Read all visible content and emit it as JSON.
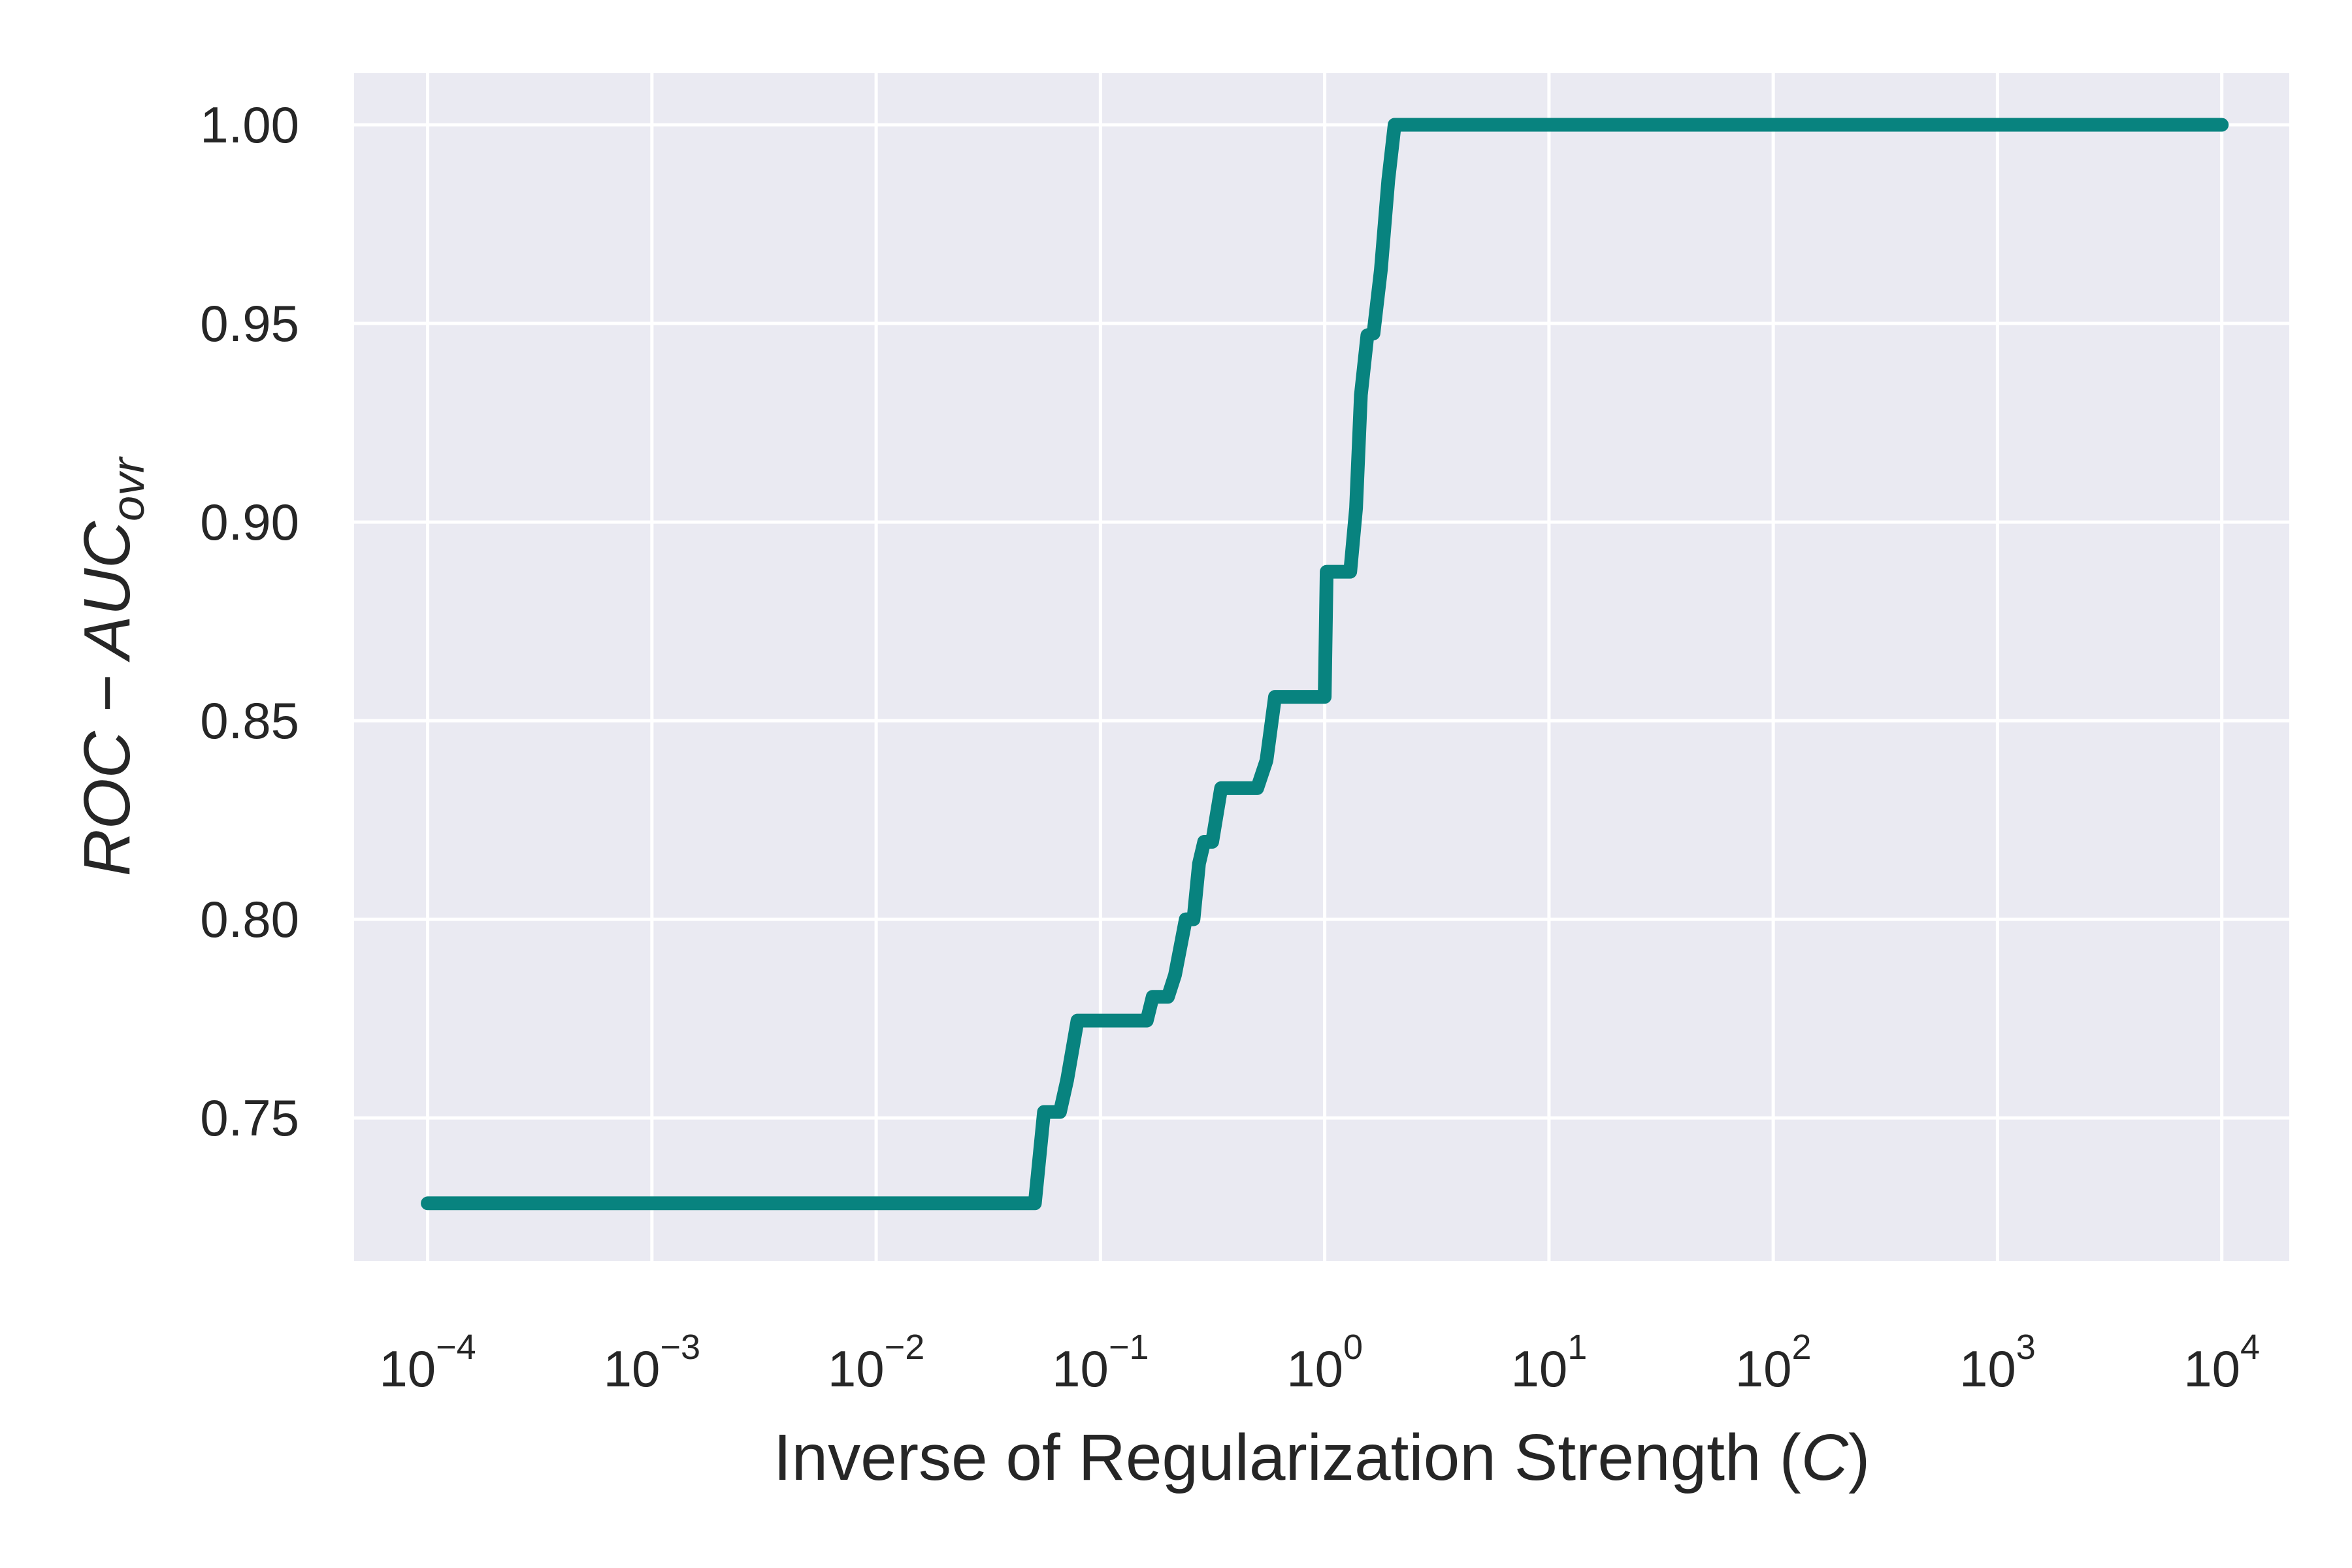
{
  "chart_data": {
    "type": "line",
    "title": "",
    "xlabel": "Inverse of Regularization Strength (C)",
    "xlabel_parts": {
      "prefix": "Inverse of Regularization Strength (",
      "var": "C",
      "suffix": ")"
    },
    "ylabel": "ROC − AUC_ovr",
    "ylabel_parts": {
      "main": "ROC − AUC",
      "sub": "ovr"
    },
    "xscale": "log",
    "xlim": [
      4.7e-05,
      20000
    ],
    "ylim": [
      0.714,
      1.013
    ],
    "x_ticks": [
      {
        "base": "10",
        "exp": "−4",
        "value": 0.0001
      },
      {
        "base": "10",
        "exp": "−3",
        "value": 0.001
      },
      {
        "base": "10",
        "exp": "−2",
        "value": 0.01
      },
      {
        "base": "10",
        "exp": "−1",
        "value": 0.1
      },
      {
        "base": "10",
        "exp": "0",
        "value": 1
      },
      {
        "base": "10",
        "exp": "1",
        "value": 10
      },
      {
        "base": "10",
        "exp": "2",
        "value": 100
      },
      {
        "base": "10",
        "exp": "3",
        "value": 1000
      },
      {
        "base": "10",
        "exp": "4",
        "value": 10000
      }
    ],
    "y_ticks": [
      {
        "label": "0.75",
        "value": 0.75
      },
      {
        "label": "0.80",
        "value": 0.8
      },
      {
        "label": "0.85",
        "value": 0.85
      },
      {
        "label": "0.90",
        "value": 0.9
      },
      {
        "label": "0.95",
        "value": 0.95
      },
      {
        "label": "1.00",
        "value": 1.0
      }
    ],
    "grid": true,
    "legend": "none",
    "colors": {
      "line": "#08837f",
      "plot_bg": "#eaeaf2",
      "grid": "#ffffff",
      "text": "#262626"
    },
    "series": [
      {
        "x": [
          0.0001,
          0.001,
          0.01,
          0.051,
          0.056,
          0.066,
          0.071,
          0.079,
          0.161,
          0.171,
          0.2,
          0.215,
          0.24,
          0.26,
          0.275,
          0.29,
          0.315,
          0.345,
          0.5,
          0.55,
          0.6,
          1.0,
          1.02,
          1.3,
          1.38,
          1.45,
          1.55,
          1.65,
          1.78,
          1.92,
          2.05,
          10,
          100,
          1000,
          10000
        ],
        "y": [
          0.7285,
          0.7285,
          0.7285,
          0.7285,
          0.7515,
          0.7515,
          0.7595,
          0.7745,
          0.7745,
          0.7805,
          0.7805,
          0.786,
          0.8,
          0.8,
          0.814,
          0.8195,
          0.8195,
          0.833,
          0.833,
          0.84,
          0.856,
          0.856,
          0.8875,
          0.8875,
          0.9035,
          0.932,
          0.947,
          0.9475,
          0.9635,
          0.986,
          1.0,
          1.0,
          1.0,
          1.0,
          1.0
        ]
      }
    ]
  }
}
